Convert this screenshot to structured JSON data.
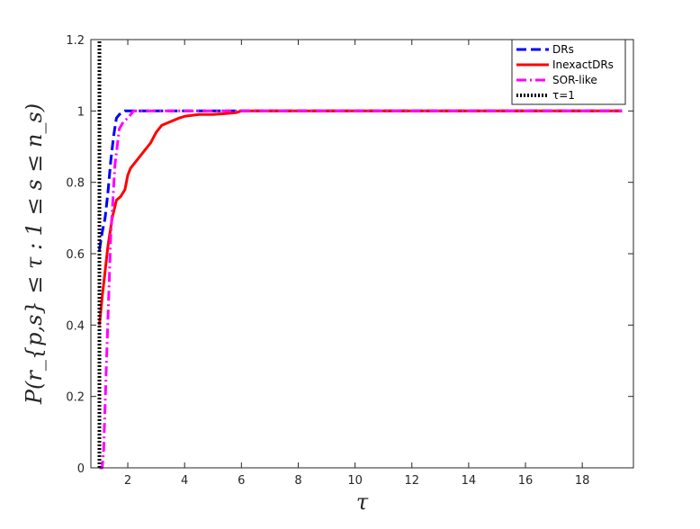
{
  "chart_data": {
    "type": "line",
    "title": "",
    "xlabel": "τ",
    "ylabel": "P(r_{p,s} ≤ τ : 1 ≤ s ≤ n_s)",
    "xlim": [
      0.7,
      19.8
    ],
    "ylim": [
      0,
      1.2
    ],
    "xticks": [
      2,
      4,
      6,
      8,
      10,
      12,
      14,
      16,
      18
    ],
    "yticks": [
      0,
      0.2,
      0.4,
      0.6,
      0.8,
      1,
      1.2
    ],
    "xtick_labels": [
      "2",
      "4",
      "6",
      "8",
      "10",
      "12",
      "14",
      "16",
      "18"
    ],
    "ytick_labels": [
      "0",
      "0.2",
      "0.4",
      "0.6",
      "0.8",
      "1",
      "1.2"
    ],
    "grid": false,
    "legend_position": "top-right",
    "series": [
      {
        "name": "DRs",
        "color": "#0000ff",
        "style": "dashed",
        "x": [
          1.0,
          1.1,
          1.2,
          1.3,
          1.4,
          1.5,
          1.6,
          1.7,
          1.9,
          2.2,
          2.5,
          19.4
        ],
        "y": [
          0.61,
          0.66,
          0.7,
          0.77,
          0.86,
          0.93,
          0.98,
          0.99,
          1.0,
          1.0,
          1.0,
          1.0
        ]
      },
      {
        "name": "InexactDRs",
        "color": "#ff0000",
        "style": "solid",
        "x": [
          1.0,
          1.1,
          1.2,
          1.3,
          1.45,
          1.6,
          1.75,
          1.9,
          2.0,
          2.1,
          2.3,
          2.5,
          2.8,
          3.0,
          3.2,
          3.5,
          3.8,
          4.0,
          4.5,
          5.0,
          5.5,
          5.8,
          6.0,
          19.4
        ],
        "y": [
          0.4,
          0.48,
          0.55,
          0.62,
          0.7,
          0.75,
          0.76,
          0.78,
          0.82,
          0.84,
          0.86,
          0.88,
          0.91,
          0.94,
          0.96,
          0.97,
          0.98,
          0.985,
          0.99,
          0.99,
          0.993,
          0.995,
          1.0,
          1.0
        ]
      },
      {
        "name": "SOR-like",
        "color": "#ff00ff",
        "style": "dashdot",
        "x": [
          1.0,
          1.1,
          1.15,
          1.25,
          1.4,
          1.55,
          1.7,
          1.85,
          2.0,
          2.2,
          2.5,
          19.4
        ],
        "y": [
          0.0,
          0.0,
          0.05,
          0.3,
          0.65,
          0.85,
          0.95,
          0.97,
          0.98,
          1.0,
          1.0,
          1.0
        ]
      },
      {
        "name": "τ=1",
        "color": "#000000",
        "style": "dotted",
        "x": [
          1.0,
          1.0
        ],
        "y": [
          0.0,
          1.2
        ]
      }
    ]
  }
}
